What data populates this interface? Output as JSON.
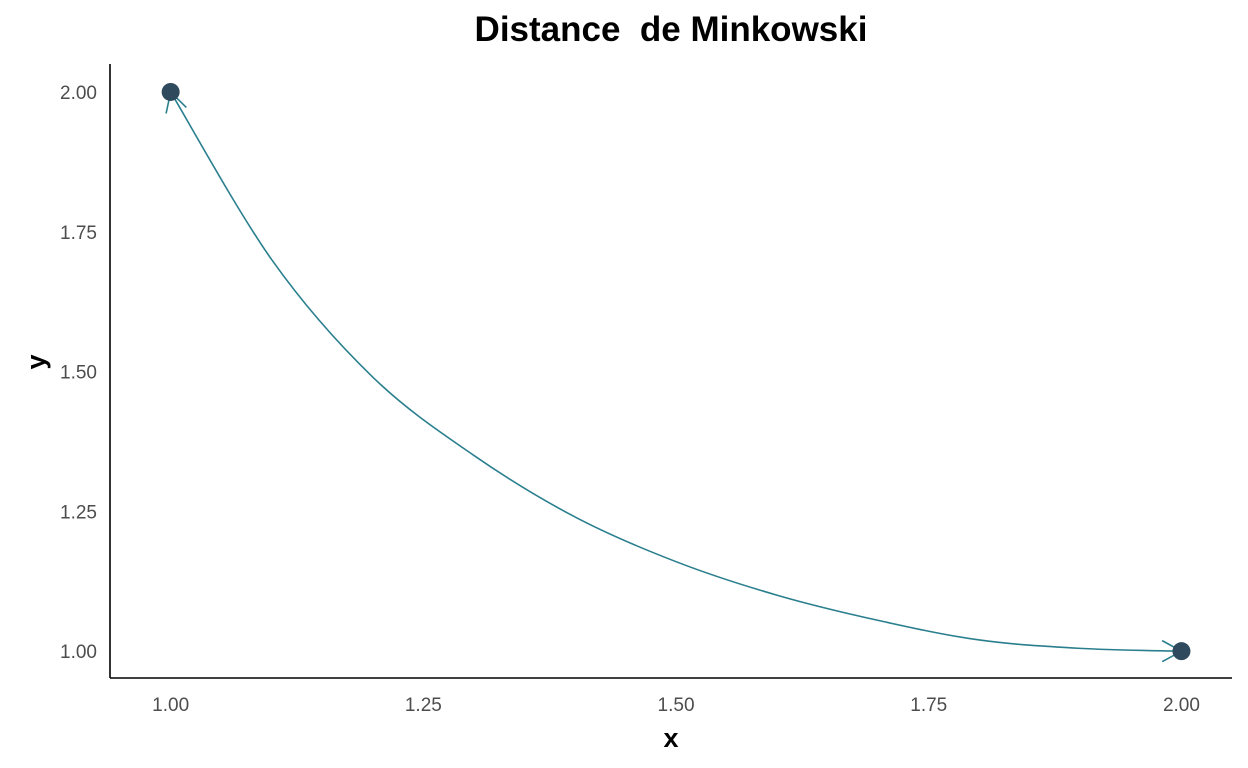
{
  "chart_data": {
    "type": "line",
    "title": "Distance  de Minkowski",
    "xlabel": "x",
    "ylabel": "y",
    "xlim": [
      0.94,
      2.05
    ],
    "ylim": [
      0.952,
      2.05
    ],
    "x_ticks": [
      1.0,
      1.25,
      1.5,
      1.75,
      2.0
    ],
    "x_tick_labels": [
      "1.00",
      "1.25",
      "1.50",
      "1.75",
      "2.00"
    ],
    "y_ticks": [
      1.0,
      1.25,
      1.5,
      1.75,
      2.0
    ],
    "y_tick_labels": [
      "1.00",
      "1.25",
      "1.50",
      "1.75",
      "2.00"
    ],
    "grid": false,
    "points": [
      {
        "x": 1.0,
        "y": 2.0
      },
      {
        "x": 2.0,
        "y": 1.0
      }
    ],
    "curve": {
      "x": [
        1.0,
        1.1,
        1.2,
        1.3,
        1.4,
        1.5,
        1.6,
        1.7,
        1.8,
        1.9,
        2.0
      ],
      "y": [
        2.0,
        1.7,
        1.49,
        1.35,
        1.24,
        1.16,
        1.1,
        1.055,
        1.02,
        1.005,
        1.0
      ]
    },
    "colors": {
      "line": "#2a7f8e",
      "point": "#2e4a5c",
      "axis": "#000000"
    }
  }
}
